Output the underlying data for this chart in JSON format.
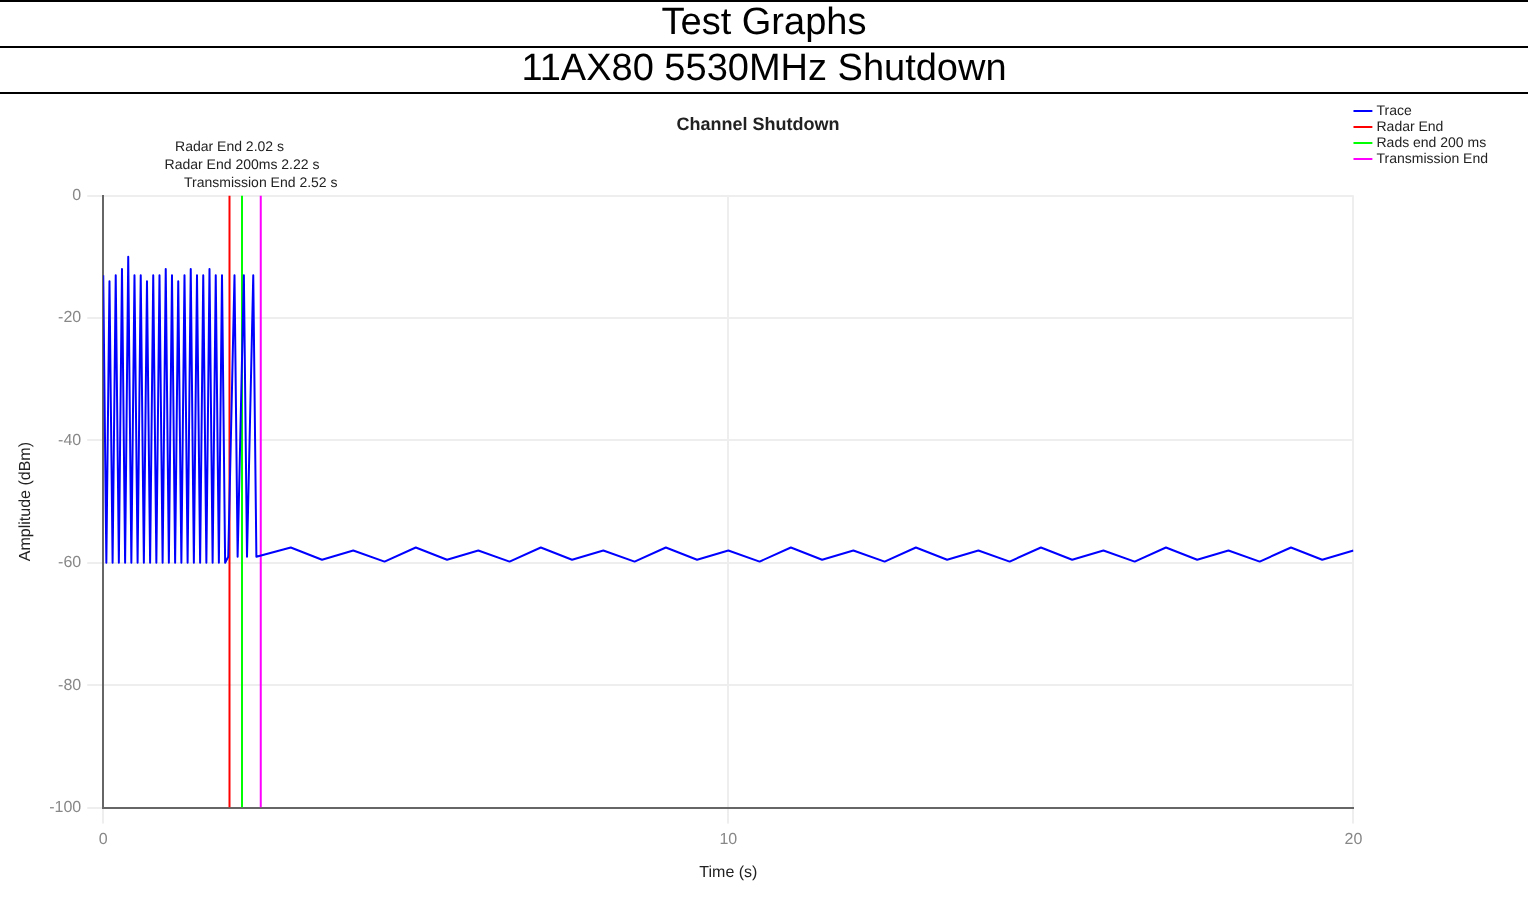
{
  "chart_data": {
    "type": "line",
    "title": "Channel Shutdown",
    "annotations": [
      "Test Graphs",
      "11AX80 5530MHz Shutdown",
      {
        "text": "Radar End 2.02 s",
        "x": 2.02,
        "y": 0
      },
      {
        "text": "Radar End 200ms 2.22 s",
        "x": 2.22,
        "y": 0
      },
      {
        "text": "Transmission End 2.52 s",
        "x": 2.52,
        "y": 0
      }
    ],
    "xlabel": "Time (s)",
    "ylabel": "Amplitude (dBm)",
    "xlim": [
      0,
      20
    ],
    "xticks": [
      0,
      10,
      20
    ],
    "ylim": [
      -100,
      0
    ],
    "yticks": [
      0,
      -20,
      -40,
      -60,
      -80,
      -100
    ],
    "grid": true,
    "legend": "top right",
    "marker": "none",
    "line_style": "solid",
    "series": [
      {
        "name": "Trace",
        "color": "#0000ff",
        "x": [
          0,
          0.05,
          0.1,
          0.15,
          0.2,
          0.25,
          0.3,
          0.35,
          0.4,
          0.45,
          0.5,
          0.55,
          0.6,
          0.65,
          0.7,
          0.75,
          0.8,
          0.85,
          0.9,
          0.95,
          1,
          1.05,
          1.1,
          1.15,
          1.2,
          1.25,
          1.3,
          1.35,
          1.4,
          1.45,
          1.5,
          1.55,
          1.6,
          1.65,
          1.7,
          1.75,
          1.8,
          1.85,
          1.9,
          1.95,
          2,
          2.1,
          2.15,
          2.25,
          2.3,
          2.4,
          2.45,
          3,
          3.5,
          4,
          4.5,
          5,
          5.5,
          6,
          6.5,
          7,
          7.5,
          8,
          8.5,
          9,
          9.5,
          10,
          10.5,
          11,
          11.5,
          12,
          12.5,
          13,
          13.5,
          14,
          14.5,
          15,
          15.5,
          16,
          16.5,
          17,
          17.5,
          18,
          18.5,
          19,
          19.5,
          20
        ],
        "values": [
          -13,
          -60,
          -14,
          -60,
          -13,
          -60,
          -12,
          -60,
          -10,
          -60,
          -13,
          -60,
          -13,
          -60,
          -14,
          -60,
          -13,
          -60,
          -13,
          -60,
          -12,
          -60,
          -13,
          -60,
          -14,
          -60,
          -13,
          -60,
          -12,
          -60,
          -13,
          -60,
          -13,
          -60,
          -12,
          -60,
          -13,
          -60,
          -13,
          -60,
          -59,
          -13,
          -59,
          -13,
          -59,
          -13,
          -59,
          -57.5,
          -59.5,
          -58,
          -59.8,
          -57.5,
          -59.5,
          -58,
          -59.8,
          -57.5,
          -59.5,
          -58,
          -59.8,
          -57.5,
          -59.5,
          -58,
          -59.8,
          -57.5,
          -59.5,
          -58,
          -59.8,
          -57.5,
          -59.5,
          -58,
          -59.8,
          -57.5,
          -59.5,
          -58,
          -59.8,
          -57.5,
          -59.5,
          -58,
          -59.8,
          -57.5,
          -59.5,
          -58
        ]
      },
      {
        "name": "Radar End",
        "color": "#ff0000",
        "x": [
          2.02,
          2.02
        ],
        "values": [
          -100,
          0
        ]
      },
      {
        "name": "Rads end 200 ms",
        "color": "#00ff00",
        "x": [
          2.22,
          2.22
        ],
        "values": [
          -100,
          0
        ]
      },
      {
        "name": "Transmission End",
        "color": "#ff00ff",
        "x": [
          2.52,
          2.52
        ],
        "values": [
          -100,
          0
        ]
      }
    ]
  }
}
